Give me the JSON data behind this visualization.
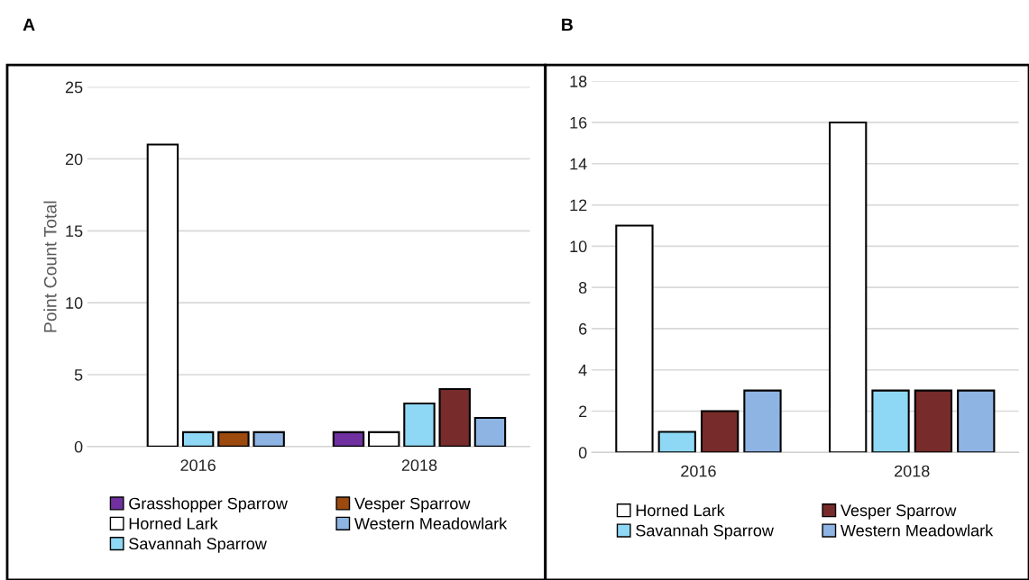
{
  "chart_data": [
    {
      "type": "bar",
      "title": "A",
      "ylabel": "Point Count Total",
      "categories": [
        "2016",
        "2018"
      ],
      "ylim": [
        0,
        25
      ],
      "yticks": [
        0,
        5,
        10,
        15,
        20,
        25
      ],
      "grid": "y",
      "legend": "bottom",
      "series": [
        {
          "name": "Grasshopper Sparrow",
          "color": "#7030a0",
          "values": [
            null,
            1
          ]
        },
        {
          "name": "Horned Lark",
          "color": "#ffffff",
          "values": [
            21,
            1
          ]
        },
        {
          "name": "Savannah Sparrow",
          "color": "#8fd8f5",
          "values": [
            1,
            3
          ]
        },
        {
          "name": "Vesper Sparrow",
          "color": "#9c4a0e",
          "colors": [
            "#9c4a0e",
            "#772b2b"
          ],
          "values": [
            1,
            4
          ]
        },
        {
          "name": "Western Meadowlark",
          "color": "#8eb4e3",
          "values": [
            1,
            2
          ]
        }
      ]
    },
    {
      "type": "bar",
      "title": "B",
      "categories": [
        "2016",
        "2018"
      ],
      "ylim": [
        0,
        18
      ],
      "yticks": [
        0,
        2,
        4,
        6,
        8,
        10,
        12,
        14,
        16,
        18
      ],
      "grid": "y",
      "legend": "bottom",
      "series": [
        {
          "name": "Horned Lark",
          "color": "#ffffff",
          "values": [
            11,
            16
          ]
        },
        {
          "name": "Savannah Sparrow",
          "color": "#8fd8f5",
          "values": [
            1,
            3
          ]
        },
        {
          "name": "Vesper Sparrow",
          "color": "#772b2b",
          "values": [
            2,
            3
          ]
        },
        {
          "name": "Western Meadowlark",
          "color": "#8eb4e3",
          "values": [
            3,
            3
          ]
        }
      ]
    }
  ]
}
